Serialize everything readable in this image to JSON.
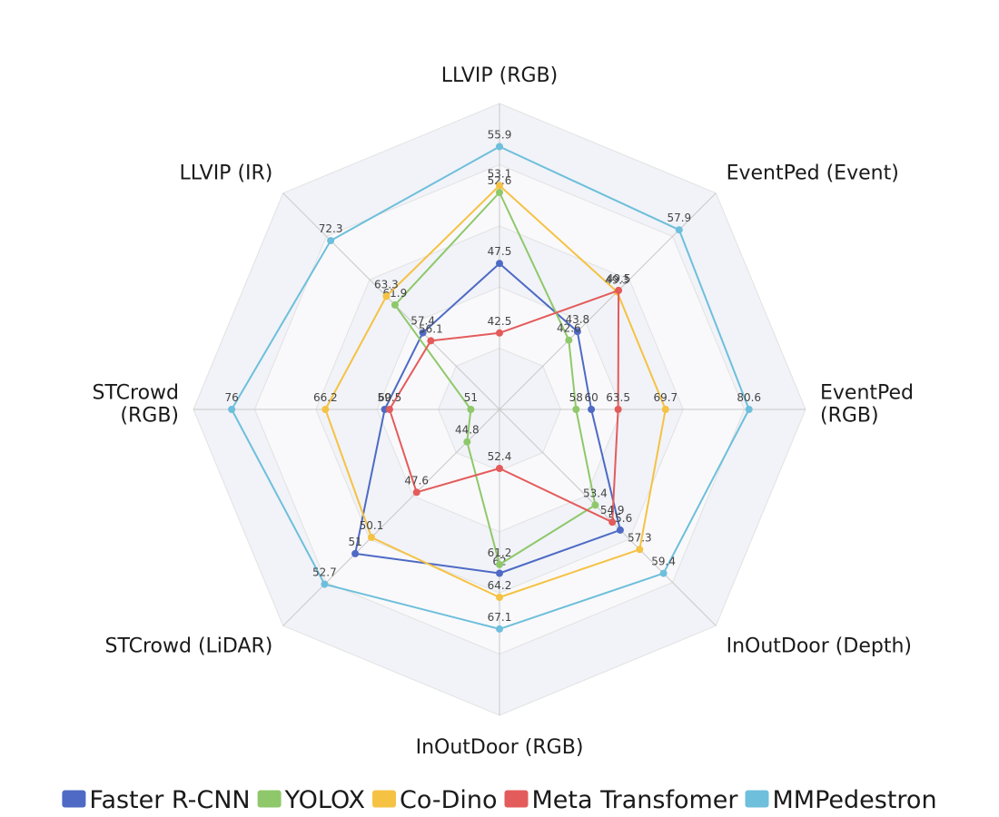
{
  "chart_data": {
    "type": "radar",
    "axes": [
      {
        "lines": [
          "LLVIP (RGB)"
        ],
        "min": 37,
        "max": 59
      },
      {
        "lines": [
          "EventPed (Event)"
        ],
        "min": 33,
        "max": 63
      },
      {
        "lines": [
          "EventPed",
          "(RGB)"
        ],
        "min": 48,
        "max": 88
      },
      {
        "lines": [
          "InOutDoor (Depth)"
        ],
        "min": 45,
        "max": 64
      },
      {
        "lines": [
          "InOutDoor (RGB)"
        ],
        "min": 47,
        "max": 75
      },
      {
        "lines": [
          "STCrowd (LiDAR)"
        ],
        "min": 43,
        "max": 55
      },
      {
        "lines": [
          "STCrowd",
          "(RGB)"
        ],
        "min": 48,
        "max": 80
      },
      {
        "lines": [
          "LLVIP (IR)"
        ],
        "min": 45,
        "max": 80
      }
    ],
    "series": [
      {
        "name": "Faster R-CNN",
        "color": "#4e6ac4",
        "values": [
          47.5,
          43.8,
          60,
          55.6,
          62,
          51,
          60,
          57.4
        ]
      },
      {
        "name": "YOLOX",
        "color": "#8fc86a",
        "values": [
          52.6,
          42.6,
          58,
          53.4,
          61.2,
          44.8,
          51,
          61.9
        ]
      },
      {
        "name": "Co-Dino",
        "color": "#f5c244",
        "values": [
          53.1,
          49.3,
          69.7,
          57.3,
          64.2,
          50.1,
          66.2,
          63.3
        ]
      },
      {
        "name": "Meta Transfomer",
        "color": "#e45b5b",
        "values": [
          42.5,
          49.5,
          63.5,
          54.9,
          52.4,
          47.6,
          59.5,
          56.1
        ]
      },
      {
        "name": "MMPedestron",
        "color": "#6ebfdb",
        "values": [
          55.9,
          57.9,
          80.6,
          59.4,
          67.1,
          52.7,
          76,
          72.3
        ]
      }
    ]
  }
}
